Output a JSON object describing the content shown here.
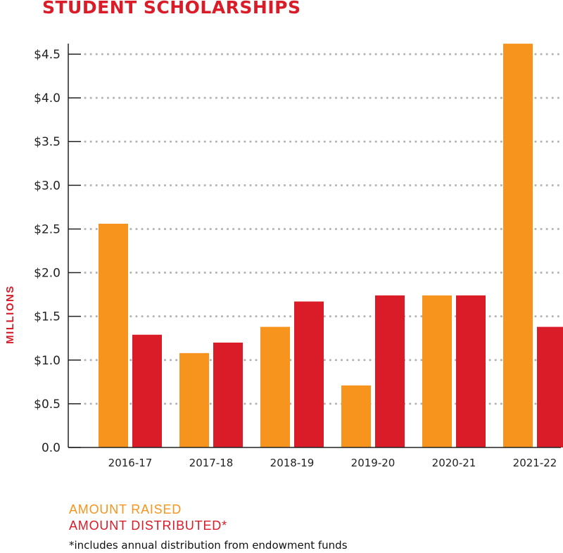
{
  "chart_data": {
    "type": "bar",
    "title": "STUDENT SCHOLARSHIPS",
    "ylabel": "MILLIONS",
    "xlabel": "",
    "ylim": [
      0,
      4.5
    ],
    "y_ticks": [
      0,
      0.5,
      1.0,
      1.5,
      2.0,
      2.5,
      3.0,
      3.5,
      4.0,
      4.5
    ],
    "y_tick_labels": [
      "0.0",
      "$0.5",
      "$1.0",
      "$1.5",
      "$2.0",
      "$2.5",
      "$3.0",
      "$3.5",
      "$4.0",
      "$4.5"
    ],
    "grid": "horizontal dotted",
    "categories": [
      "2016-17",
      "2017-18",
      "2018-19",
      "2019-20",
      "2020-21",
      "2021-22"
    ],
    "series": [
      {
        "name": "AMOUNT RAISED",
        "color": "#f7941d",
        "values": [
          2.56,
          1.08,
          1.38,
          0.71,
          1.74,
          4.62
        ]
      },
      {
        "name": "AMOUNT DISTRIBUTED*",
        "color": "#d91c28",
        "values": [
          1.29,
          1.2,
          1.67,
          1.74,
          1.74,
          1.38
        ]
      }
    ],
    "footnote": "*includes annual distribution from endowment funds"
  }
}
